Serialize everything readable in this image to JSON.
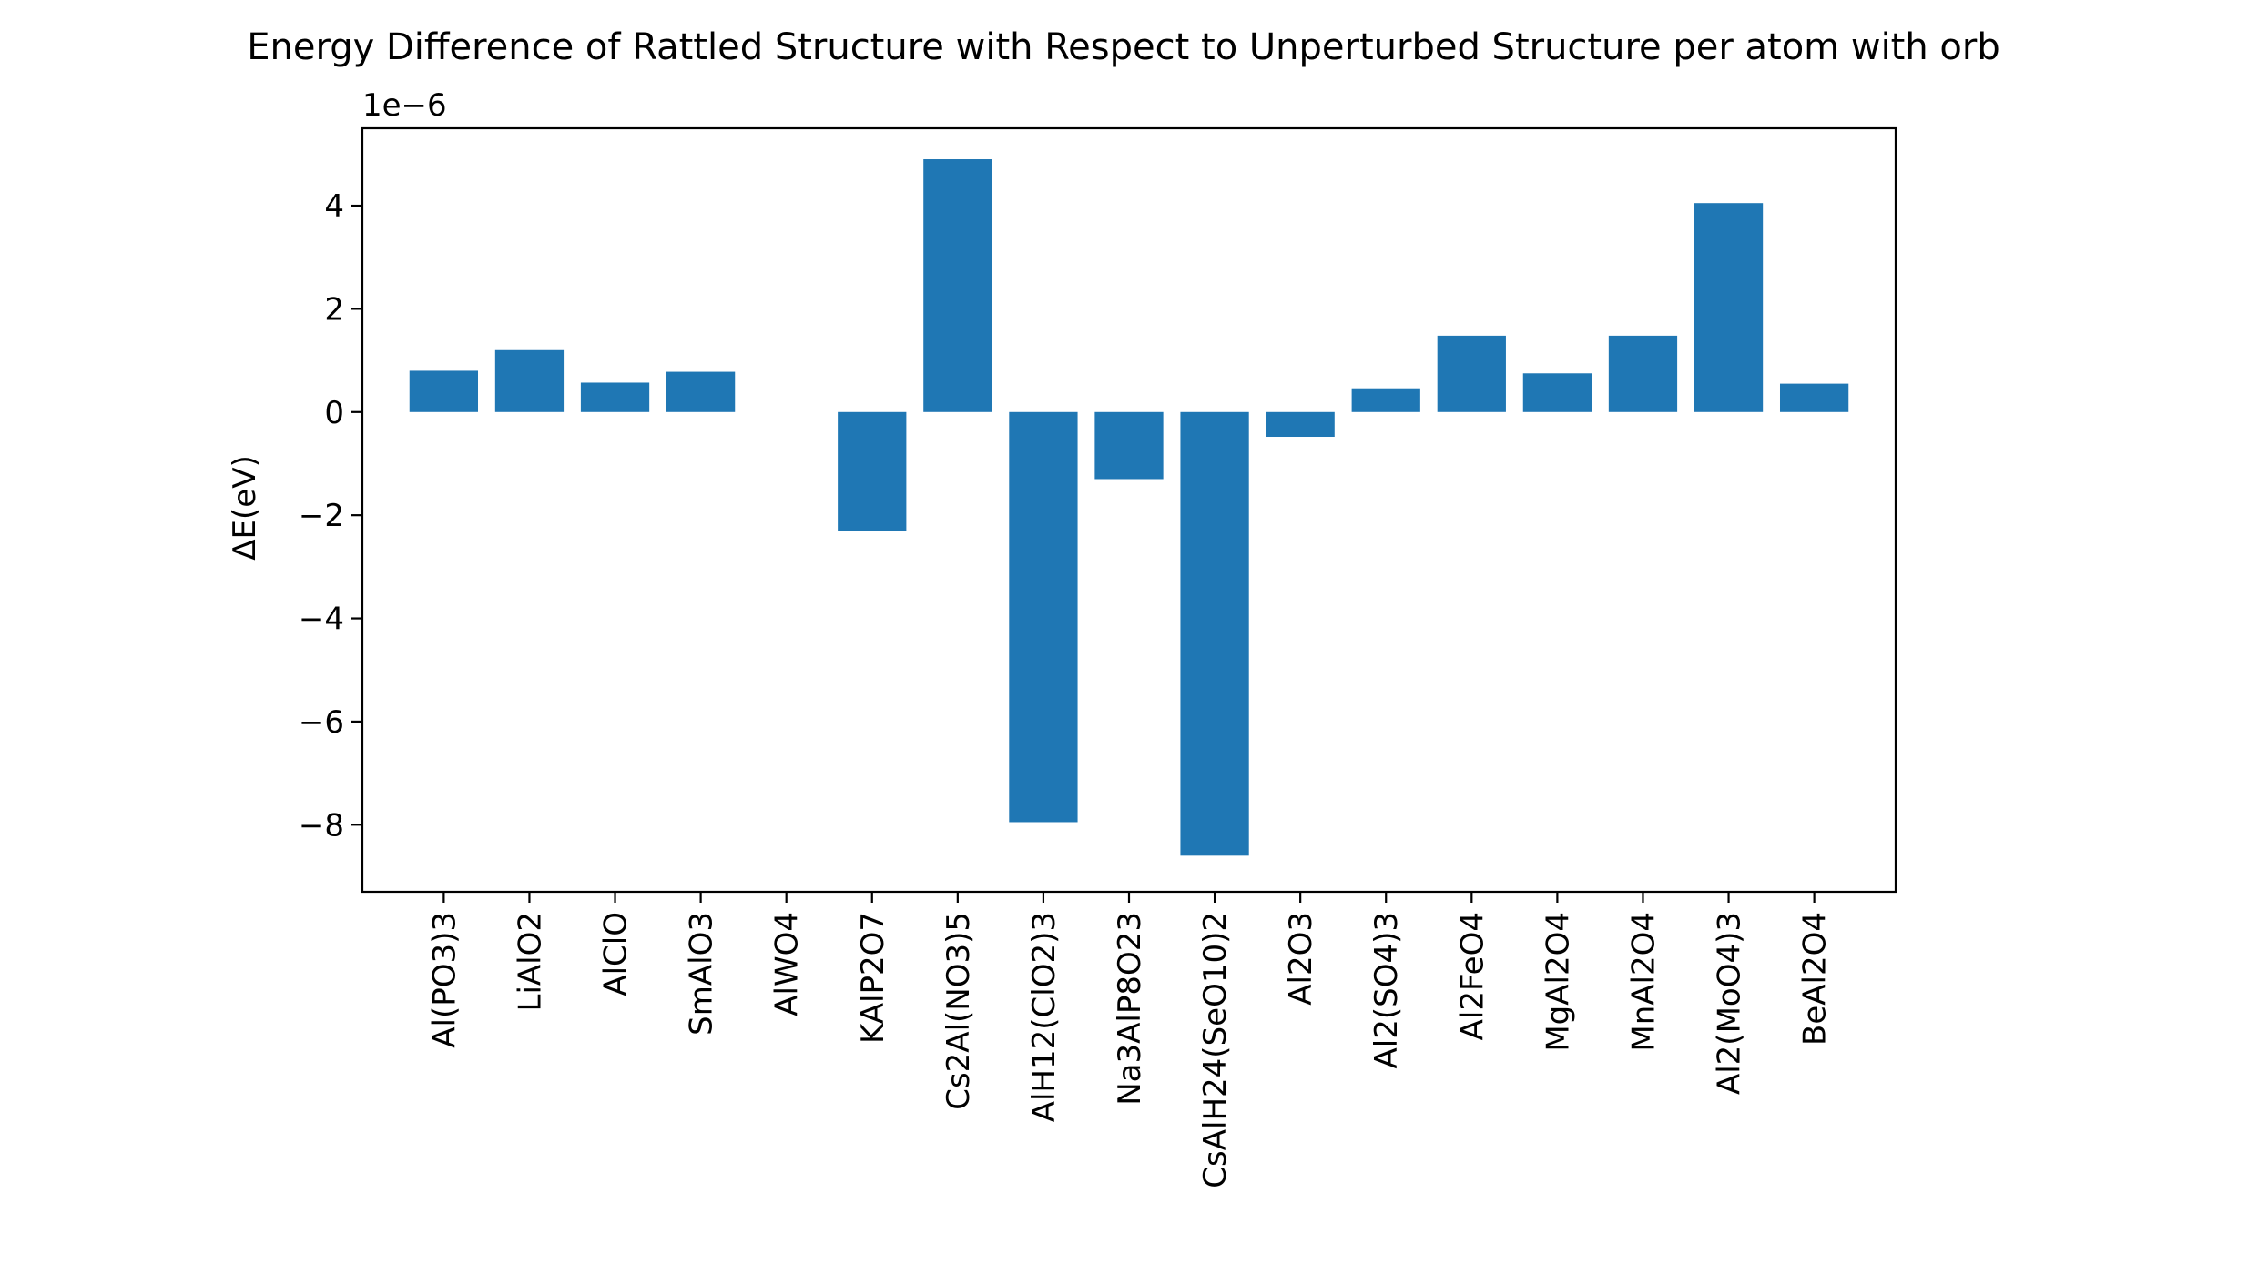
{
  "chart_data": {
    "type": "bar",
    "title": "Energy Difference of Rattled Structure with Respect to Unperturbed Structure per atom with orb",
    "ylabel": "ΔE(eV)",
    "xlabel": "",
    "offset_text": "1e−6",
    "scale": 1e-06,
    "bar_color": "#1f77b4",
    "grid": false,
    "ylim": [
      -9.3,
      5.5
    ],
    "yticks": [
      -8,
      -6,
      -4,
      -2,
      0,
      2,
      4
    ],
    "ytick_labels": [
      "−8",
      "−6",
      "−4",
      "−2",
      "0",
      "2",
      "4"
    ],
    "categories": [
      "Al(PO3)3",
      "LiAlO2",
      "AlClO",
      "SmAlO3",
      "AlWO4",
      "KAlP2O7",
      "Cs2Al(NO3)5",
      "AlH12(ClO2)3",
      "Na3AlP8O23",
      "CsAlH24(SeO10)2",
      "Al2O3",
      "Al2(SO4)3",
      "Al2FeO4",
      "MgAl2O4",
      "MnAl2O4",
      "Al2(MoO4)3",
      "BeAl2O4"
    ],
    "values": [
      0.8,
      1.2,
      0.57,
      0.78,
      0.0,
      -2.3,
      4.9,
      -7.95,
      -1.3,
      -8.6,
      -0.48,
      0.46,
      1.48,
      0.75,
      1.48,
      4.05,
      0.55
    ]
  }
}
